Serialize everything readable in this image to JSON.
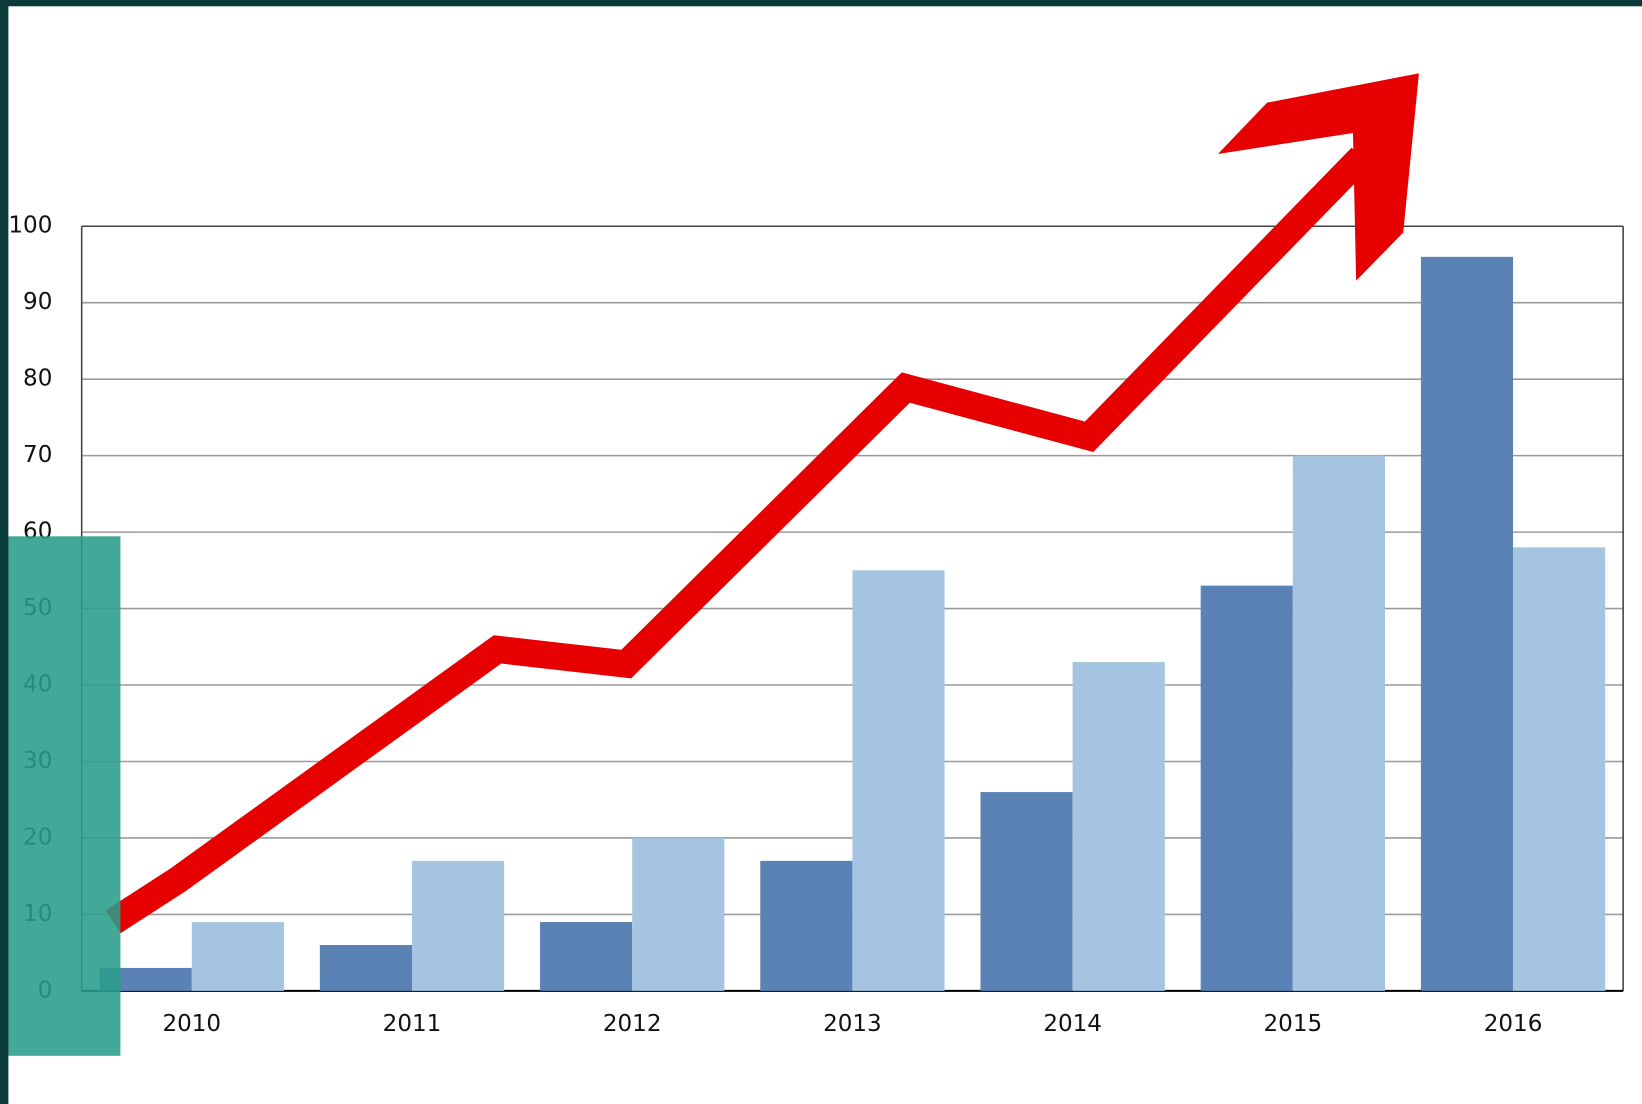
{
  "chart_data": {
    "type": "bar",
    "categories": [
      "2010",
      "2011",
      "2012",
      "2013",
      "2014",
      "2015",
      "2016"
    ],
    "series": [
      {
        "color": "#5b82b5",
        "values": [
          3,
          6,
          9,
          17,
          26,
          53,
          96
        ]
      },
      {
        "color": "#a5c4e1",
        "values": [
          9,
          17,
          20,
          55,
          43,
          70,
          58
        ]
      }
    ],
    "ylim": [
      0,
      100
    ],
    "yticks": [
      0,
      10,
      20,
      30,
      40,
      50,
      60,
      70,
      80,
      90,
      100
    ],
    "grid": true
  }
}
